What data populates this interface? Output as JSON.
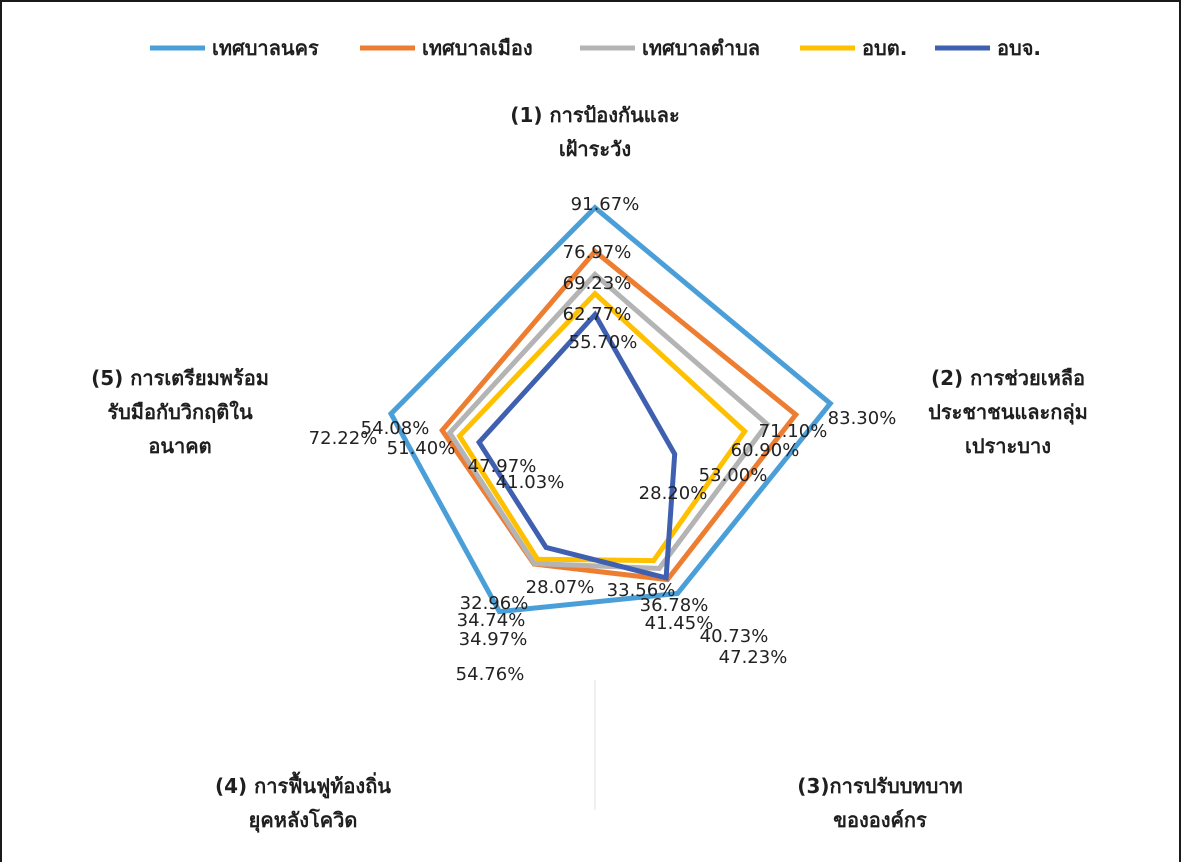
{
  "chart_data": {
    "type": "radar",
    "axes": [
      [
        "(1) การป้องกันและ",
        "เฝ้าระวัง"
      ],
      [
        "(2) การช่วยเหลือ",
        "ประชาชนและกลุ่ม",
        "เปราะบาง"
      ],
      [
        "(3)การปรับบทบาท",
        "ขององค์กร"
      ],
      [
        "(4) การฟื้นฟูท้องถิ่น",
        "ยุคหลังโควิด"
      ],
      [
        "(5) การเตรียมพร้อม",
        "รับมือกับวิกฤติใน",
        "อนาคต"
      ]
    ],
    "rmax": 100,
    "series": [
      {
        "name": "เทศบาลนคร",
        "color": "#4a9fd8",
        "values": [
          91.67,
          83.3,
          47.23,
          54.76,
          72.22
        ],
        "labels": [
          "91.67%",
          "83.30%",
          "47.23%",
          "54.76%",
          "72.22%"
        ]
      },
      {
        "name": "เทศบาลเมือง",
        "color": "#ed7d31",
        "values": [
          76.97,
          71.1,
          41.45,
          34.97,
          54.08
        ],
        "labels": [
          "76.97%",
          "71.10%",
          "41.45%",
          "34.97%",
          "54.08%"
        ]
      },
      {
        "name": "เทศบาลตำบล",
        "color": "#b4b4b4",
        "values": [
          69.23,
          60.9,
          36.78,
          34.74,
          51.4
        ],
        "labels": [
          "69.23%",
          "60.90%",
          "36.78%",
          "34.74%",
          "51.40%"
        ]
      },
      {
        "name": "อบต.",
        "color": "#ffc000",
        "values": [
          62.77,
          53.0,
          33.56,
          32.96,
          47.97
        ],
        "labels": [
          "62.77%",
          "53.00%",
          "33.56%",
          "32.96%",
          "47.97%"
        ]
      },
      {
        "name": "อบจ.",
        "color": "#3f5fb0",
        "values": [
          55.7,
          28.2,
          40.73,
          28.07,
          41.03
        ],
        "labels": [
          "55.70%",
          "28.20%",
          "40.73%",
          "28.07%",
          "41.03%"
        ]
      }
    ],
    "legend_position": "top",
    "grid": false
  }
}
